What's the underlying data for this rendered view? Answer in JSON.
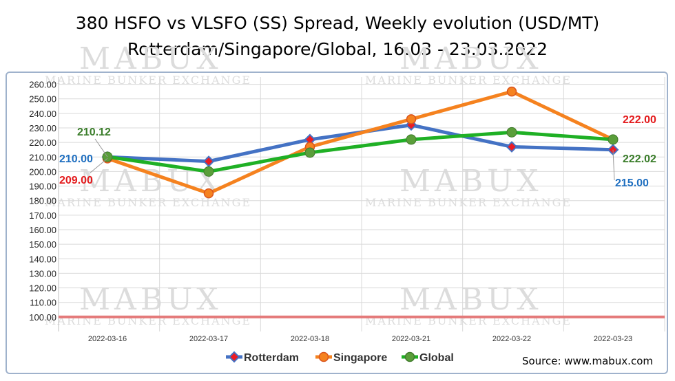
{
  "chart_data": {
    "type": "line",
    "title": "380 HSFO vs VLSFO (SS) Spread, Weekly evolution (USD/MT)",
    "subtitle": "Rotterdam/Singapore/Global, 16.03 - 23.03.2022",
    "categories": [
      "2022-03-16",
      "2022-03-17",
      "2022-03-18",
      "2022-03-21",
      "2022-03-22",
      "2022-03-23"
    ],
    "ylim": [
      90,
      265
    ],
    "yticks": [
      "100.00",
      "110.00",
      "120.00",
      "130.00",
      "140.00",
      "150.00",
      "160.00",
      "170.00",
      "180.00",
      "190.00",
      "200.00",
      "210.00",
      "220.00",
      "230.00",
      "240.00",
      "250.00",
      "260.00"
    ],
    "ytick_values": [
      100,
      110,
      120,
      130,
      140,
      150,
      160,
      170,
      180,
      190,
      200,
      210,
      220,
      230,
      240,
      250,
      260
    ],
    "grid": true,
    "legend": "bottom",
    "reference_line": {
      "y": 100,
      "color": "#e47a7a"
    },
    "series": [
      {
        "name": "Rotterdam",
        "color": "#4472c4",
        "marker": "diamond",
        "marker_color": "#ec1c24",
        "values": [
          210.0,
          207.0,
          222.0,
          232.0,
          217.0,
          215.0
        ]
      },
      {
        "name": "Singapore",
        "color": "#f5821f",
        "marker": "circle",
        "marker_color": "#f5821f",
        "values": [
          209.0,
          185.0,
          217.0,
          236.0,
          255.0,
          222.0
        ]
      },
      {
        "name": "Global",
        "color": "#1fb025",
        "marker": "circle",
        "marker_color": "#5a9e3a",
        "values": [
          210.12,
          200.0,
          213.0,
          222.0,
          227.0,
          222.02
        ]
      }
    ],
    "data_labels": [
      {
        "text": "210.12",
        "color": "#3a7d2a",
        "series": 2,
        "index": 0
      },
      {
        "text": "210.00",
        "color": "#1f6fc0",
        "series": 0,
        "index": 0
      },
      {
        "text": "209.00",
        "color": "#e31a1c",
        "series": 1,
        "index": 0
      },
      {
        "text": "222.00",
        "color": "#e31a1c",
        "series": 1,
        "index": 5
      },
      {
        "text": "222.02",
        "color": "#3a7d2a",
        "series": 2,
        "index": 5
      },
      {
        "text": "215.00",
        "color": "#1f6fc0",
        "series": 0,
        "index": 5
      }
    ],
    "source": "Source: www.mabux.com"
  },
  "watermark": {
    "big": "MABUX",
    "small": "MARINE BUNKER EXCHANGE"
  }
}
